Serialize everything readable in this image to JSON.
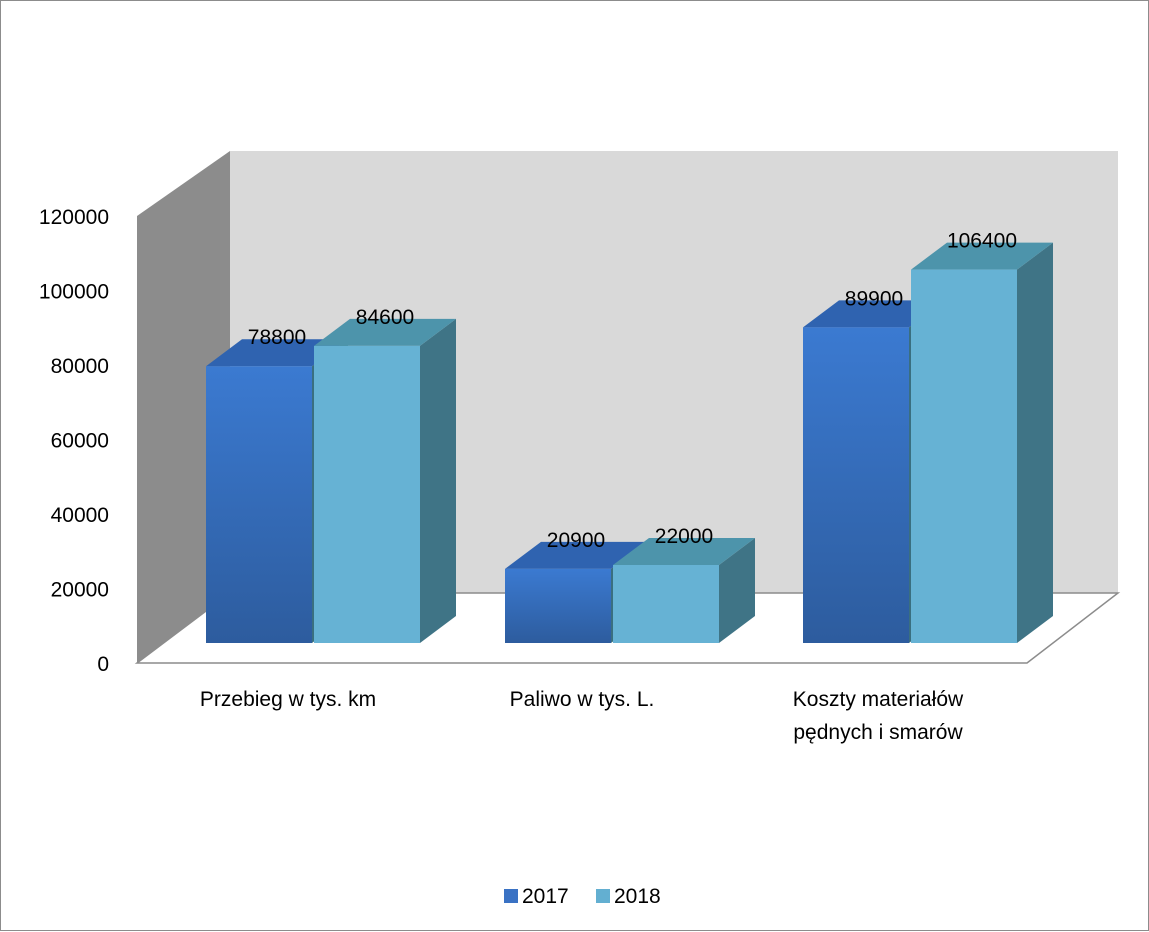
{
  "chart_data": {
    "type": "bar",
    "categories": [
      [
        "Przebieg w tys. km"
      ],
      [
        "Paliwo w tys. L."
      ],
      [
        "Koszty materiałów",
        "pędnych i smarów"
      ]
    ],
    "series": [
      {
        "name": "2017",
        "values": [
          78800,
          20900,
          89900
        ],
        "color": "#3a72c4"
      },
      {
        "name": "2018",
        "values": [
          84600,
          22000,
          106400
        ],
        "color": "#63afd1"
      }
    ],
    "y_ticks": [
      "0",
      "20000",
      "40000",
      "60000",
      "80000",
      "100000",
      "120000"
    ],
    "ylim": [
      0,
      120000
    ],
    "data_labels": [
      [
        "78800",
        "20900",
        "89900"
      ],
      [
        "84600",
        "22000",
        "106400"
      ]
    ],
    "legend_position": "bottom",
    "style": "3d-clustered-column",
    "colors": {
      "back_wall": "#d9d9d9",
      "side_wall": "#8c8c8c",
      "floor": "#ffffff"
    }
  }
}
